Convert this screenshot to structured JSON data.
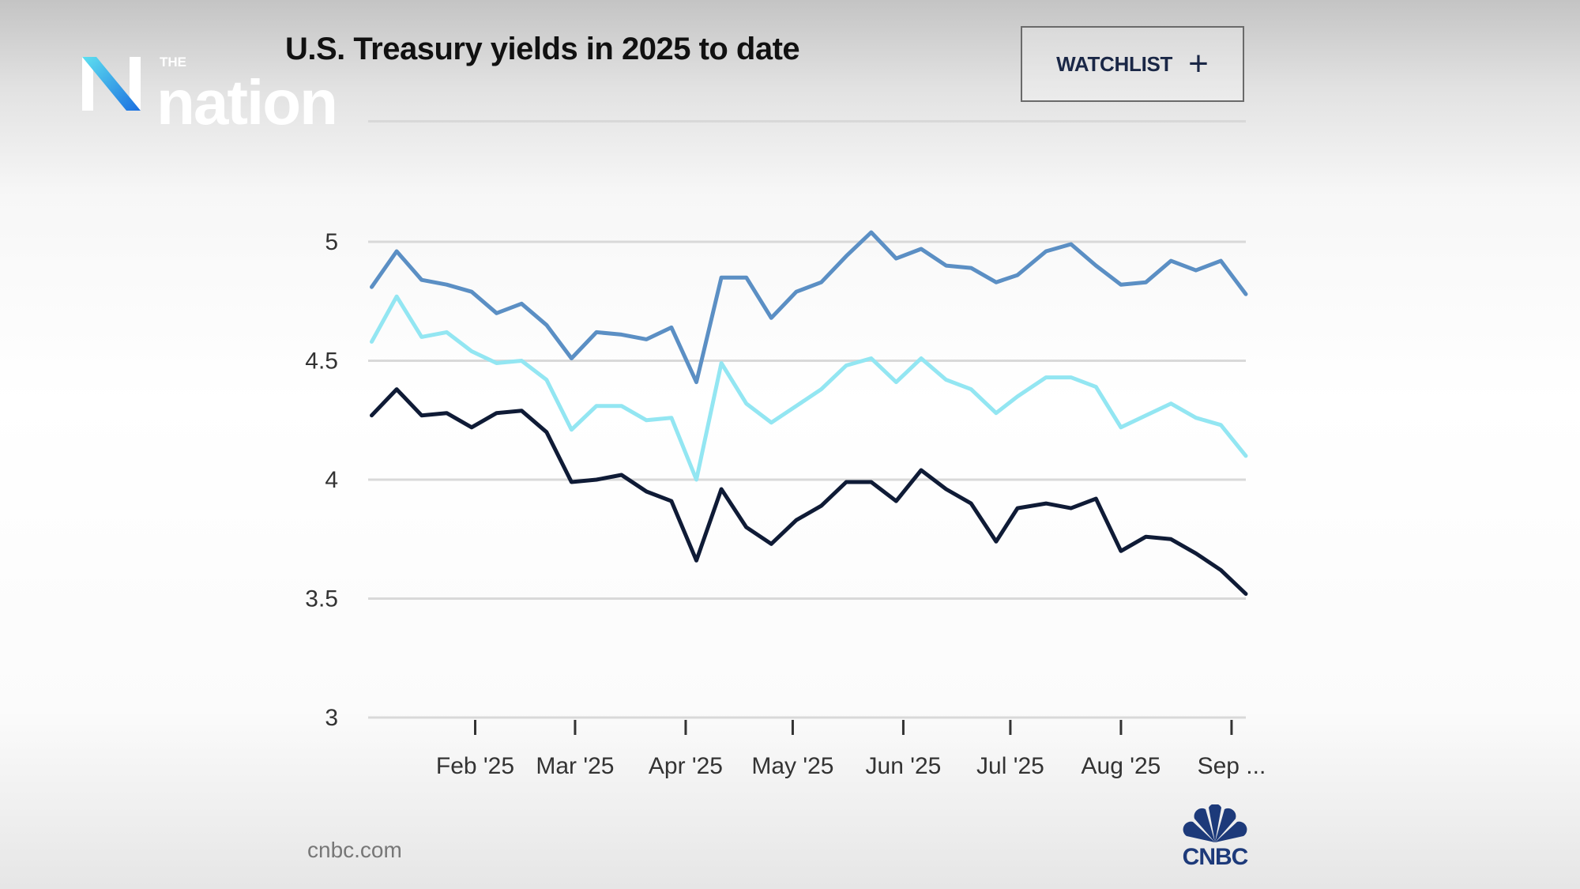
{
  "header": {
    "title": "U.S. Treasury yields in 2025 to date",
    "watchlist_label": "WATCHLIST",
    "watchlist_icon": "plus-icon"
  },
  "overlay_logo": {
    "small": "THE",
    "word": "nation"
  },
  "footer": {
    "source": "cnbc.com",
    "brand": "CNBC"
  },
  "colors": {
    "series_top": "#5b8fc4",
    "series_middle": "#93e6f2",
    "series_bottom": "#0f1b36",
    "grid": "#d9d9d9"
  },
  "chart_data": {
    "type": "line",
    "title": "U.S. Treasury yields in 2025 to date",
    "xlabel": "",
    "ylabel": "",
    "ylim": [
      3,
      5.2
    ],
    "yticks": [
      3,
      3.5,
      4,
      4.5,
      5
    ],
    "ytick_labels": [
      "3",
      "3.5",
      "4",
      "4.5",
      "5"
    ],
    "xlim": [
      "2025-01-02",
      "2025-09-05"
    ],
    "xticks": [
      "2025-02-01",
      "2025-03-01",
      "2025-04-01",
      "2025-05-01",
      "2025-06-01",
      "2025-07-01",
      "2025-08-01",
      "2025-09-01"
    ],
    "xtick_labels": [
      "Feb '25",
      "Mar '25",
      "Apr '25",
      "May '25",
      "Jun '25",
      "Jul '25",
      "Aug '25",
      "Sep ..."
    ],
    "grid": true,
    "x": [
      "2025-01-03",
      "2025-01-10",
      "2025-01-17",
      "2025-01-24",
      "2025-01-31",
      "2025-02-07",
      "2025-02-14",
      "2025-02-21",
      "2025-02-28",
      "2025-03-07",
      "2025-03-14",
      "2025-03-21",
      "2025-03-28",
      "2025-04-04",
      "2025-04-11",
      "2025-04-18",
      "2025-04-25",
      "2025-05-02",
      "2025-05-09",
      "2025-05-16",
      "2025-05-23",
      "2025-05-30",
      "2025-06-06",
      "2025-06-13",
      "2025-06-20",
      "2025-06-27",
      "2025-07-03",
      "2025-07-11",
      "2025-07-18",
      "2025-07-25",
      "2025-08-01",
      "2025-08-08",
      "2025-08-15",
      "2025-08-22",
      "2025-08-29",
      "2025-09-05"
    ],
    "series": [
      {
        "color": "#5b8fc4",
        "values": [
          4.81,
          4.96,
          4.84,
          4.82,
          4.79,
          4.7,
          4.74,
          4.65,
          4.51,
          4.62,
          4.61,
          4.59,
          4.64,
          4.41,
          4.85,
          4.85,
          4.68,
          4.79,
          4.83,
          4.94,
          5.04,
          4.93,
          4.97,
          4.9,
          4.89,
          4.83,
          4.86,
          4.96,
          4.99,
          4.9,
          4.82,
          4.83,
          4.92,
          4.88,
          4.92,
          4.78
        ]
      },
      {
        "color": "#93e6f2",
        "values": [
          4.58,
          4.77,
          4.6,
          4.62,
          4.54,
          4.49,
          4.5,
          4.42,
          4.21,
          4.31,
          4.31,
          4.25,
          4.26,
          4.0,
          4.49,
          4.32,
          4.24,
          4.31,
          4.38,
          4.48,
          4.51,
          4.41,
          4.51,
          4.42,
          4.38,
          4.28,
          4.35,
          4.43,
          4.43,
          4.39,
          4.22,
          4.27,
          4.32,
          4.26,
          4.23,
          4.1
        ]
      },
      {
        "color": "#0f1b36",
        "values": [
          4.27,
          4.38,
          4.27,
          4.28,
          4.22,
          4.28,
          4.29,
          4.2,
          3.99,
          4.0,
          4.02,
          3.95,
          3.91,
          3.66,
          3.96,
          3.8,
          3.73,
          3.83,
          3.89,
          3.99,
          3.99,
          3.91,
          4.04,
          3.96,
          3.9,
          3.74,
          3.88,
          3.9,
          3.88,
          3.92,
          3.7,
          3.76,
          3.75,
          3.69,
          3.62,
          3.52
        ]
      }
    ]
  }
}
